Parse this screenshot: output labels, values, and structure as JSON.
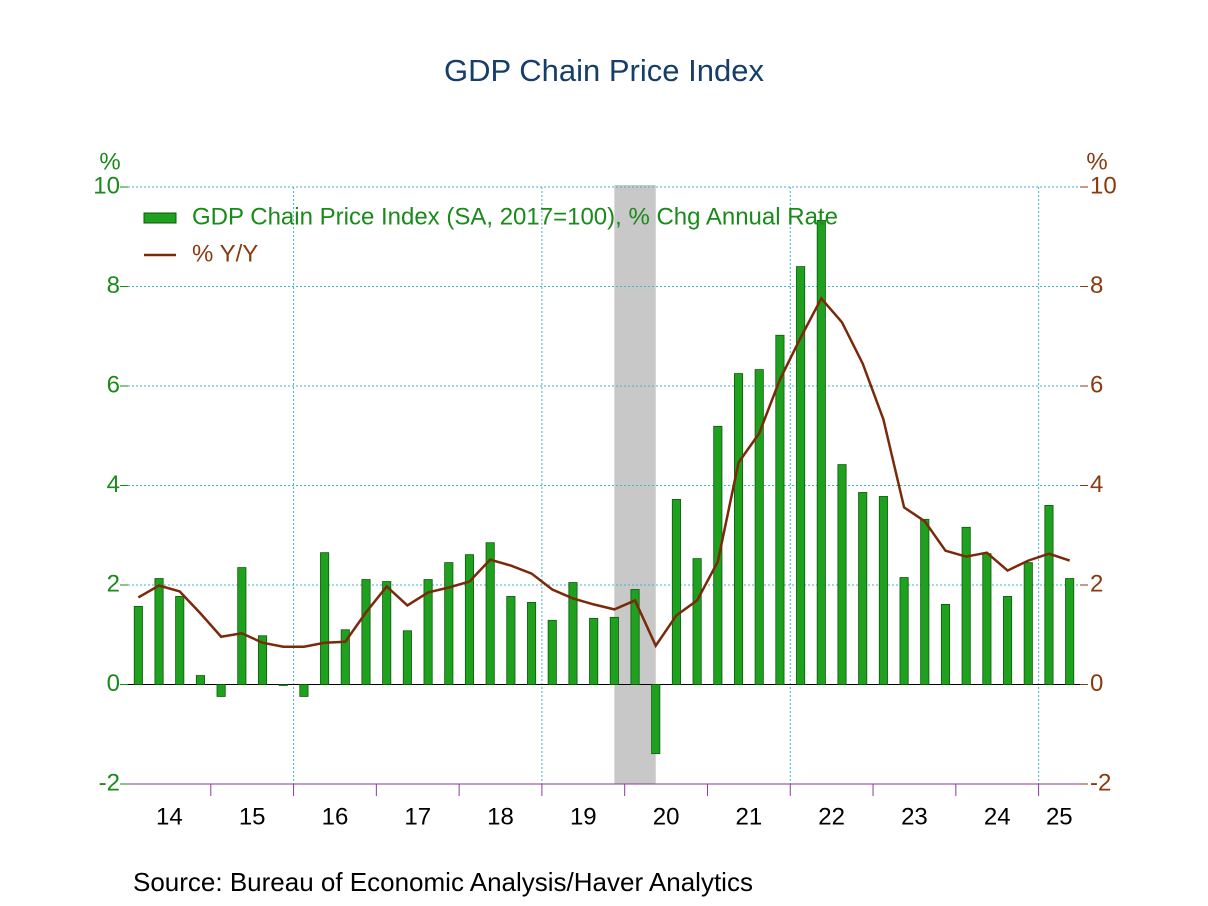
{
  "chart_data": {
    "type": "bar",
    "title": "GDP Chain Price Index",
    "source": "Source:  Bureau of Economic Analysis/Haver Analytics",
    "ylabel": "%",
    "y2label": "%",
    "x": [
      2014.125,
      2014.375,
      2014.625,
      2014.875,
      2015.125,
      2015.375,
      2015.625,
      2015.875,
      2016.125,
      2016.375,
      2016.625,
      2016.875,
      2017.125,
      2017.375,
      2017.625,
      2017.875,
      2018.125,
      2018.375,
      2018.625,
      2018.875,
      2019.125,
      2019.375,
      2019.625,
      2019.875,
      2020.125,
      2020.375,
      2020.625,
      2020.875,
      2021.125,
      2021.375,
      2021.625,
      2021.875,
      2022.125,
      2022.375,
      2022.625,
      2022.875,
      2023.125,
      2023.375,
      2023.625,
      2023.875,
      2024.125,
      2024.375,
      2024.625,
      2024.875,
      2025.125,
      2025.375
    ],
    "series": [
      {
        "name": "GDP Chain Price Index (SA, 2017=100), % Chg Annual Rate",
        "type": "bar",
        "color": "#1fa01f",
        "values": [
          1.57,
          2.13,
          1.77,
          0.18,
          -0.24,
          2.35,
          0.98,
          -0.02,
          -0.24,
          2.65,
          1.1,
          2.11,
          2.07,
          1.08,
          2.11,
          2.45,
          2.61,
          2.85,
          1.77,
          1.65,
          1.29,
          2.05,
          1.33,
          1.35,
          1.91,
          -1.39,
          3.72,
          2.53,
          5.19,
          6.25,
          6.33,
          7.02,
          8.4,
          9.33,
          4.42,
          3.86,
          3.78,
          2.15,
          3.32,
          1.61,
          3.16,
          2.63,
          1.77,
          2.45,
          3.6,
          2.13
        ]
      },
      {
        "name": "% Y/Y",
        "type": "line",
        "axis": "y2",
        "color": "#7a2a0a",
        "values": [
          1.75,
          1.99,
          1.87,
          1.43,
          0.96,
          1.03,
          0.84,
          0.76,
          0.76,
          0.84,
          0.86,
          1.45,
          1.97,
          1.59,
          1.85,
          1.95,
          2.07,
          2.51,
          2.39,
          2.23,
          1.91,
          1.73,
          1.61,
          1.51,
          1.69,
          0.78,
          1.39,
          1.69,
          2.47,
          4.46,
          5.05,
          6.13,
          6.97,
          7.76,
          7.28,
          6.45,
          5.33,
          3.56,
          3.28,
          2.69,
          2.57,
          2.65,
          2.29,
          2.49,
          2.63,
          2.49
        ]
      }
    ],
    "xlim": [
      2014,
      2025.5
    ],
    "xticks": [
      {
        "value": 2014.5,
        "label": "14"
      },
      {
        "value": 2015.5,
        "label": "15"
      },
      {
        "value": 2016.5,
        "label": "16"
      },
      {
        "value": 2017.5,
        "label": "17"
      },
      {
        "value": 2018.5,
        "label": "18"
      },
      {
        "value": 2019.5,
        "label": "19"
      },
      {
        "value": 2020.5,
        "label": "20"
      },
      {
        "value": 2021.5,
        "label": "21"
      },
      {
        "value": 2022.5,
        "label": "22"
      },
      {
        "value": 2023.5,
        "label": "23"
      },
      {
        "value": 2024.5,
        "label": "24"
      },
      {
        "value": 2025.25,
        "label": "25"
      }
    ],
    "xtick_marks": [
      2015,
      2016,
      2017,
      2018,
      2019,
      2020,
      2021,
      2022,
      2023,
      2024,
      2025
    ],
    "xgrid": [
      2016,
      2019,
      2022,
      2025
    ],
    "shaded_periods": [
      [
        2019.875,
        2020.375
      ]
    ],
    "ylim": [
      -2,
      10
    ],
    "yticks": [
      -2,
      0,
      2,
      4,
      6,
      8,
      10
    ],
    "y2lim": [
      -2,
      10
    ],
    "y2ticks": [
      -2,
      0,
      2,
      4,
      6,
      8,
      10
    ],
    "grid": true,
    "legend": "upper left",
    "left_axis_color": "#1a8a1a",
    "right_axis_color": "#8a3a10"
  }
}
